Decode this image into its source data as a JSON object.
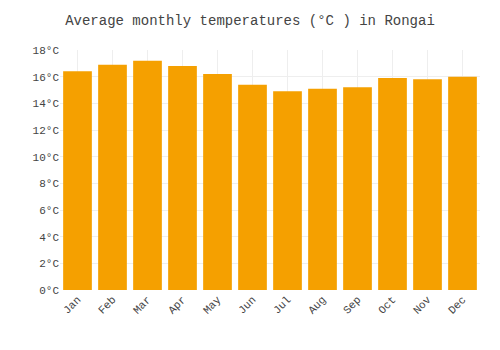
{
  "chart_data": {
    "type": "bar",
    "title": "Average monthly temperatures (°C ) in Rongai",
    "categories": [
      "Jan",
      "Feb",
      "Mar",
      "Apr",
      "May",
      "Jun",
      "Jul",
      "Aug",
      "Sep",
      "Oct",
      "Nov",
      "Dec"
    ],
    "values": [
      16.4,
      16.9,
      17.2,
      16.8,
      16.2,
      15.4,
      14.9,
      15.1,
      15.2,
      15.9,
      15.8,
      16.0
    ],
    "color": "#F5A000",
    "ylim": [
      0,
      18
    ],
    "yticks": [
      {
        "value": 0,
        "label": "0°C"
      },
      {
        "value": 2,
        "label": "2°C"
      },
      {
        "value": 4,
        "label": "4°C"
      },
      {
        "value": 6,
        "label": "6°C"
      },
      {
        "value": 8,
        "label": "8°C"
      },
      {
        "value": 10,
        "label": "10°C"
      },
      {
        "value": 12,
        "label": "12°C"
      },
      {
        "value": 14,
        "label": "14°C"
      },
      {
        "value": 16,
        "label": "16°C"
      },
      {
        "value": 18,
        "label": "18°C"
      }
    ],
    "grid": true
  }
}
